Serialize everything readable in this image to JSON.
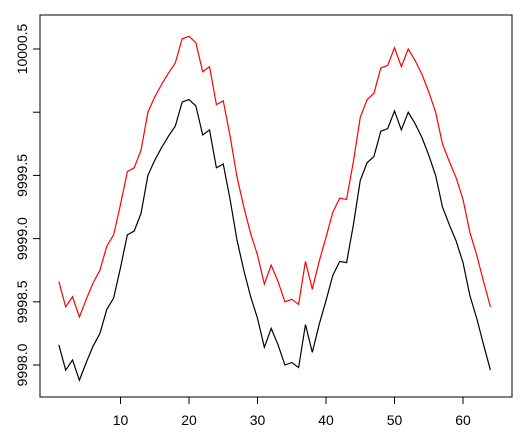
{
  "chart_data": {
    "type": "line",
    "x": [
      1,
      2,
      3,
      4,
      5,
      6,
      7,
      8,
      9,
      10,
      11,
      12,
      13,
      14,
      15,
      16,
      17,
      18,
      19,
      20,
      21,
      22,
      23,
      24,
      25,
      26,
      27,
      28,
      29,
      30,
      31,
      32,
      33,
      34,
      35,
      36,
      37,
      38,
      39,
      40,
      41,
      42,
      43,
      44,
      45,
      46,
      47,
      48,
      49,
      50,
      51,
      52,
      53,
      54,
      55,
      56,
      57,
      58,
      59,
      60,
      61,
      62,
      63,
      64
    ],
    "series": [
      {
        "color": "#000000",
        "values": [
          9998.16,
          9997.96,
          9998.04,
          9997.88,
          9998.02,
          9998.15,
          9998.25,
          9998.44,
          9998.53,
          9998.77,
          9999.03,
          9999.06,
          9999.2,
          9999.5,
          9999.62,
          9999.72,
          9999.81,
          9999.89,
          10000.08,
          10000.1,
          10000.05,
          9999.82,
          9999.86,
          9999.56,
          9999.59,
          9999.31,
          9998.99,
          9998.75,
          9998.54,
          9998.37,
          9998.14,
          9998.29,
          9998.16,
          9998.0,
          9998.02,
          9997.98,
          9998.32,
          9998.1,
          9998.32,
          9998.51,
          9998.71,
          9998.82,
          9998.81,
          9999.11,
          9999.46,
          9999.6,
          9999.65,
          9999.85,
          9999.87,
          10000.01,
          9999.86,
          10000.0,
          9999.91,
          9999.8,
          9999.66,
          9999.5,
          9999.25,
          9999.11,
          9998.98,
          9998.81,
          9998.55,
          9998.37,
          9998.16,
          9997.96
        ]
      },
      {
        "color": "#ff0000",
        "values": [
          9998.66,
          9998.46,
          9998.54,
          9998.38,
          9998.52,
          9998.65,
          9998.75,
          9998.94,
          9999.03,
          9999.27,
          9999.53,
          9999.56,
          9999.7,
          10000.0,
          10000.12,
          10000.22,
          10000.31,
          10000.39,
          10000.58,
          10000.6,
          10000.55,
          10000.32,
          10000.36,
          10000.06,
          10000.09,
          9999.81,
          9999.49,
          9999.25,
          9999.04,
          9998.87,
          9998.64,
          9998.79,
          9998.66,
          9998.5,
          9998.52,
          9998.48,
          9998.82,
          9998.6,
          9998.82,
          9999.01,
          9999.21,
          9999.32,
          9999.31,
          9999.61,
          9999.96,
          10000.1,
          10000.15,
          10000.35,
          10000.37,
          10000.51,
          10000.36,
          10000.5,
          10000.41,
          10000.3,
          10000.16,
          10000.0,
          9999.75,
          9999.61,
          9999.48,
          9999.31,
          9999.05,
          9998.87,
          9998.66,
          9998.46
        ]
      }
    ],
    "xlim": [
      -1.75,
      67.15
    ],
    "xticks": [
      10,
      20,
      30,
      40,
      50,
      60
    ],
    "ylim": [
      9997.747,
      10000.769
    ],
    "yticks": [
      {
        "value": 9998,
        "label": "9998.0"
      },
      {
        "value": 9998.5,
        "label": "9998.5"
      },
      {
        "value": 9999,
        "label": "9999.0"
      },
      {
        "value": 9999.5,
        "label": "9999.5"
      },
      {
        "value": 10000,
        "label": null
      },
      {
        "value": 10000.5,
        "label": "10000.5"
      }
    ]
  }
}
